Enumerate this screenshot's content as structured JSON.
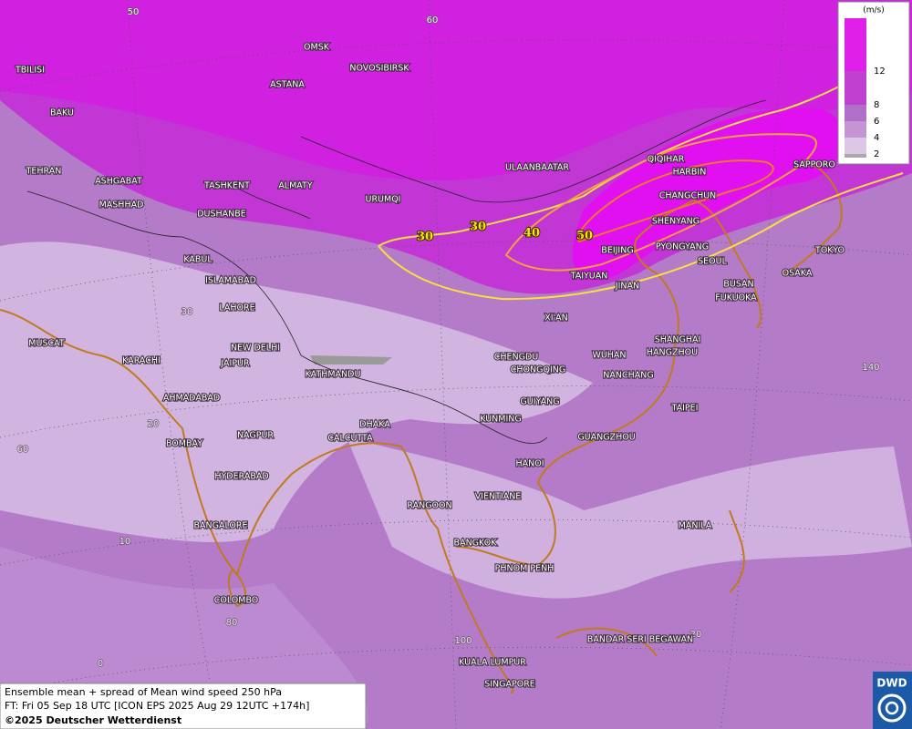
{
  "legend": {
    "unit": "(m/s)",
    "labels": [
      12,
      8,
      6,
      4,
      2
    ]
  },
  "contour_labels": [
    30,
    30,
    40,
    50
  ],
  "grid_labels": [
    50,
    60,
    30,
    20,
    60,
    10,
    80,
    0,
    100,
    20,
    140
  ],
  "cities": [
    "OMSK",
    "NOVOSIBIRSK",
    "ASTANA",
    "TBILISI",
    "BAKU",
    "TEHRAN",
    "ASHGABAT",
    "MASHHAD",
    "TASHKENT",
    "ALMATY",
    "DUSHANBE",
    "URUMQI",
    "ULAANBAATAR",
    "QIQIHAR",
    "HARBIN",
    "SAPPORO",
    "CHANGCHUN",
    "SHENYANG",
    "BEIJING",
    "PYONGYANG",
    "SEOUL",
    "TOKYO",
    "OSAKA",
    "BUSAN",
    "FUKUOKA",
    "TAIYUAN",
    "JINAN",
    "XI'AN",
    "KABUL",
    "ISLAMABAD",
    "LAHORE",
    "NEW DELHI",
    "JAIPUR",
    "KATHMANDU",
    "MUSCAT",
    "KARACHI",
    "AHMADABAD",
    "BOMBAY",
    "NAGPUR",
    "HYDERABAD",
    "CALCUTTA",
    "DHAKA",
    "CHENGDU",
    "CHONGQING",
    "WUHAN",
    "SHANGHAI",
    "HANGZHOU",
    "NANCHANG",
    "TAIPEI",
    "GUIYANG",
    "KUNMING",
    "GUANGZHOU",
    "HANOI",
    "VIENTIANE",
    "RANGOON",
    "BANGALORE",
    "BANGKOK",
    "PHNOM PENH",
    "MANILA",
    "COLOMBO",
    "BANDAR SERI BEGAWAN",
    "KUALA LUMPUR",
    "SINGAPORE"
  ],
  "footer": [
    "Ensemble mean + spread of Mean wind speed 250 hPa",
    "FT: Fri 05 Sep 18 UTC [ICON EPS 2025 Aug 29 12UTC +174h]",
    "©2025 Deutscher Wetterdienst"
  ],
  "logo": "DWD"
}
